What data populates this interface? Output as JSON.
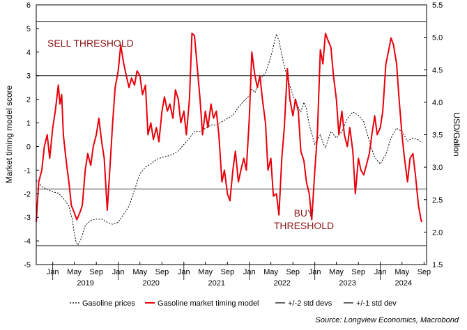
{
  "chart_data": {
    "type": "line",
    "ylabel_left": "Market timing model score",
    "ylabel_right": "USD/Gallon",
    "source": "Source: Longview Economics, Macrobond",
    "annotations": {
      "sell_threshold": "SELL THRESHOLD",
      "buy_threshold_line1": "BUY",
      "buy_threshold_line2": "THRESHOLD"
    },
    "ylim_left": [
      -5,
      6
    ],
    "ylim_right": [
      1.5,
      5.5
    ],
    "yticks_left": [
      -5,
      -4,
      -3,
      -2,
      -1,
      0,
      1,
      2,
      3,
      4,
      5,
      6
    ],
    "yticks_right": [
      1.5,
      2.0,
      2.5,
      3.0,
      3.5,
      4.0,
      4.5,
      5.0,
      5.5
    ],
    "yticklabels_left": [
      "-5",
      "-4",
      "-3",
      "-2",
      "-1",
      "0",
      "1",
      "2",
      "3",
      "4",
      "5",
      "6"
    ],
    "yticklabels_right": [
      "1.5",
      "2.0",
      "2.5",
      "3.0",
      "3.5",
      "4.0",
      "4.5",
      "5.0",
      "5.5"
    ],
    "xlim": [
      "2018-10-01",
      "2024-09-15"
    ],
    "xticks": [
      {
        "date": "2019-01-01",
        "label": "Jan"
      },
      {
        "date": "2019-05-01",
        "label": "May"
      },
      {
        "date": "2019-09-01",
        "label": "Sep"
      },
      {
        "date": "2020-01-01",
        "label": "Jan"
      },
      {
        "date": "2020-05-01",
        "label": "May"
      },
      {
        "date": "2020-09-01",
        "label": "Sep"
      },
      {
        "date": "2021-01-01",
        "label": "Jan"
      },
      {
        "date": "2021-05-01",
        "label": "May"
      },
      {
        "date": "2021-09-01",
        "label": "Sep"
      },
      {
        "date": "2022-01-01",
        "label": "Jan"
      },
      {
        "date": "2022-05-01",
        "label": "May"
      },
      {
        "date": "2022-09-01",
        "label": "Sep"
      },
      {
        "date": "2023-01-01",
        "label": "Jan"
      },
      {
        "date": "2023-05-01",
        "label": "May"
      },
      {
        "date": "2023-09-01",
        "label": "Sep"
      },
      {
        "date": "2024-01-01",
        "label": "Jan"
      },
      {
        "date": "2024-05-01",
        "label": "May"
      },
      {
        "date": "2024-09-01",
        "label": "Sep"
      }
    ],
    "year_labels": [
      {
        "date": "2019-01-01",
        "label": "2019"
      },
      {
        "date": "2020-01-01",
        "label": "2020"
      },
      {
        "date": "2021-01-01",
        "label": "2021"
      },
      {
        "date": "2022-01-01",
        "label": "2022"
      },
      {
        "date": "2023-01-01",
        "label": "2023"
      },
      {
        "date": "2024-01-01",
        "label": "2024"
      }
    ],
    "hlines": [
      {
        "y": 5.3,
        "series": "+/-2 std devs"
      },
      {
        "y": 3.0,
        "series": "+/-1 std dev"
      },
      {
        "y": -1.8,
        "series": "+/-1 std dev"
      },
      {
        "y": -4.2,
        "series": "+/-2 std devs"
      }
    ],
    "series": [
      {
        "name": "Gasoline prices",
        "axis": "right",
        "color": "#000000",
        "style": "dotted",
        "points": [
          [
            "2018-10-01",
            2.8
          ],
          [
            "2018-11-01",
            2.7
          ],
          [
            "2018-12-01",
            2.66
          ],
          [
            "2019-01-01",
            2.62
          ],
          [
            "2019-02-01",
            2.6
          ],
          [
            "2019-03-01",
            2.52
          ],
          [
            "2019-04-01",
            2.4
          ],
          [
            "2019-04-20",
            2.2
          ],
          [
            "2019-05-01",
            1.98
          ],
          [
            "2019-05-10",
            1.86
          ],
          [
            "2019-05-20",
            1.8
          ],
          [
            "2019-06-01",
            1.85
          ],
          [
            "2019-06-15",
            1.95
          ],
          [
            "2019-07-01",
            2.1
          ],
          [
            "2019-08-01",
            2.18
          ],
          [
            "2019-09-01",
            2.2
          ],
          [
            "2019-10-01",
            2.2
          ],
          [
            "2019-11-01",
            2.15
          ],
          [
            "2019-12-01",
            2.12
          ],
          [
            "2020-01-01",
            2.15
          ],
          [
            "2020-02-01",
            2.28
          ],
          [
            "2020-03-01",
            2.4
          ],
          [
            "2020-04-01",
            2.65
          ],
          [
            "2020-05-01",
            2.9
          ],
          [
            "2020-06-01",
            3.0
          ],
          [
            "2020-07-01",
            3.05
          ],
          [
            "2020-08-01",
            3.12
          ],
          [
            "2020-09-01",
            3.15
          ],
          [
            "2020-10-01",
            3.17
          ],
          [
            "2020-11-01",
            3.2
          ],
          [
            "2020-12-01",
            3.25
          ],
          [
            "2021-01-01",
            3.35
          ],
          [
            "2021-02-01",
            3.45
          ],
          [
            "2021-03-01",
            3.55
          ],
          [
            "2021-04-01",
            3.55
          ],
          [
            "2021-05-01",
            3.6
          ],
          [
            "2021-06-01",
            3.65
          ],
          [
            "2021-07-01",
            3.65
          ],
          [
            "2021-08-01",
            3.7
          ],
          [
            "2021-09-01",
            3.75
          ],
          [
            "2021-10-01",
            3.8
          ],
          [
            "2021-11-01",
            3.92
          ],
          [
            "2021-12-01",
            4.02
          ],
          [
            "2022-01-01",
            4.1
          ],
          [
            "2022-01-15",
            4.2
          ],
          [
            "2022-02-01",
            4.15
          ],
          [
            "2022-03-01",
            4.35
          ],
          [
            "2022-04-01",
            4.45
          ],
          [
            "2022-05-01",
            4.7
          ],
          [
            "2022-06-01",
            5.05
          ],
          [
            "2022-06-15",
            4.95
          ],
          [
            "2022-07-15",
            4.55
          ],
          [
            "2022-08-15",
            4.25
          ],
          [
            "2022-09-15",
            4.0
          ],
          [
            "2022-10-15",
            3.85
          ],
          [
            "2022-11-01",
            4.0
          ],
          [
            "2022-11-15",
            3.9
          ],
          [
            "2022-12-01",
            3.65
          ],
          [
            "2023-01-01",
            3.35
          ],
          [
            "2023-01-15",
            3.42
          ],
          [
            "2023-02-01",
            3.5
          ],
          [
            "2023-02-15",
            3.38
          ],
          [
            "2023-03-01",
            3.3
          ],
          [
            "2023-04-01",
            3.55
          ],
          [
            "2023-05-01",
            3.45
          ],
          [
            "2023-06-01",
            3.55
          ],
          [
            "2023-07-01",
            3.75
          ],
          [
            "2023-08-01",
            3.85
          ],
          [
            "2023-09-01",
            3.8
          ],
          [
            "2023-10-01",
            3.7
          ],
          [
            "2023-11-01",
            3.4
          ],
          [
            "2023-12-01",
            3.15
          ],
          [
            "2024-01-01",
            3.05
          ],
          [
            "2024-02-01",
            3.2
          ],
          [
            "2024-03-01",
            3.45
          ],
          [
            "2024-04-01",
            3.6
          ],
          [
            "2024-05-01",
            3.55
          ],
          [
            "2024-06-01",
            3.4
          ],
          [
            "2024-07-01",
            3.45
          ],
          [
            "2024-08-01",
            3.42
          ],
          [
            "2024-08-20",
            3.38
          ]
        ]
      },
      {
        "name": "Gasoline market timing model",
        "axis": "left",
        "color": "#e8000b",
        "style": "solid",
        "points": [
          [
            "2018-10-01",
            -3.2
          ],
          [
            "2018-10-15",
            -1.5
          ],
          [
            "2018-11-01",
            -1.0
          ],
          [
            "2018-11-15",
            0.0
          ],
          [
            "2018-12-01",
            0.5
          ],
          [
            "2018-12-15",
            -0.5
          ],
          [
            "2019-01-01",
            0.8
          ],
          [
            "2019-01-15",
            1.5
          ],
          [
            "2019-02-01",
            2.6
          ],
          [
            "2019-02-10",
            1.8
          ],
          [
            "2019-02-20",
            2.2
          ],
          [
            "2019-03-01",
            0.5
          ],
          [
            "2019-03-15",
            -0.5
          ],
          [
            "2019-04-01",
            -1.5
          ],
          [
            "2019-04-15",
            -2.5
          ],
          [
            "2019-05-01",
            -2.8
          ],
          [
            "2019-05-15",
            -3.1
          ],
          [
            "2019-06-01",
            -2.8
          ],
          [
            "2019-06-15",
            -2.5
          ],
          [
            "2019-07-01",
            -1.0
          ],
          [
            "2019-07-15",
            -0.3
          ],
          [
            "2019-08-01",
            -0.8
          ],
          [
            "2019-08-15",
            0.0
          ],
          [
            "2019-09-01",
            0.5
          ],
          [
            "2019-09-15",
            1.2
          ],
          [
            "2019-10-01",
            0.2
          ],
          [
            "2019-10-15",
            -0.5
          ],
          [
            "2019-11-01",
            -2.7
          ],
          [
            "2019-11-15",
            -1.0
          ],
          [
            "2019-12-01",
            1.0
          ],
          [
            "2019-12-15",
            2.5
          ],
          [
            "2020-01-01",
            3.2
          ],
          [
            "2020-01-15",
            4.3
          ],
          [
            "2020-02-01",
            3.5
          ],
          [
            "2020-02-15",
            3.0
          ],
          [
            "2020-03-01",
            2.5
          ],
          [
            "2020-03-15",
            2.9
          ],
          [
            "2020-04-01",
            2.6
          ],
          [
            "2020-04-15",
            3.2
          ],
          [
            "2020-05-01",
            3.0
          ],
          [
            "2020-05-15",
            2.2
          ],
          [
            "2020-06-01",
            2.6
          ],
          [
            "2020-06-15",
            0.5
          ],
          [
            "2020-07-01",
            1.0
          ],
          [
            "2020-07-15",
            0.3
          ],
          [
            "2020-08-01",
            0.8
          ],
          [
            "2020-08-15",
            0.2
          ],
          [
            "2020-09-01",
            1.5
          ],
          [
            "2020-09-15",
            2.1
          ],
          [
            "2020-10-01",
            1.5
          ],
          [
            "2020-10-15",
            1.8
          ],
          [
            "2020-11-01",
            1.2
          ],
          [
            "2020-11-15",
            2.4
          ],
          [
            "2020-12-01",
            2.0
          ],
          [
            "2020-12-15",
            1.0
          ],
          [
            "2021-01-01",
            1.5
          ],
          [
            "2021-01-15",
            0.5
          ],
          [
            "2021-02-01",
            2.0
          ],
          [
            "2021-02-15",
            4.8
          ],
          [
            "2021-03-01",
            4.7
          ],
          [
            "2021-03-15",
            3.5
          ],
          [
            "2021-04-01",
            2.0
          ],
          [
            "2021-04-15",
            0.5
          ],
          [
            "2021-05-01",
            1.5
          ],
          [
            "2021-05-15",
            0.8
          ],
          [
            "2021-06-01",
            1.8
          ],
          [
            "2021-06-15",
            1.2
          ],
          [
            "2021-07-01",
            1.5
          ],
          [
            "2021-07-15",
            0.5
          ],
          [
            "2021-08-01",
            -1.5
          ],
          [
            "2021-08-15",
            -1.0
          ],
          [
            "2021-09-01",
            -2.0
          ],
          [
            "2021-09-15",
            -2.3
          ],
          [
            "2021-10-01",
            -1.0
          ],
          [
            "2021-10-15",
            -0.2
          ],
          [
            "2021-11-01",
            -1.5
          ],
          [
            "2021-11-15",
            -1.0
          ],
          [
            "2021-12-01",
            -0.5
          ],
          [
            "2021-12-15",
            -1.0
          ],
          [
            "2022-01-01",
            1.2
          ],
          [
            "2022-01-15",
            4.0
          ],
          [
            "2022-02-01",
            3.0
          ],
          [
            "2022-02-15",
            2.5
          ],
          [
            "2022-03-01",
            3.0
          ],
          [
            "2022-03-15",
            2.0
          ],
          [
            "2022-04-01",
            1.0
          ],
          [
            "2022-04-15",
            -1.0
          ],
          [
            "2022-05-01",
            -0.5
          ],
          [
            "2022-05-15",
            -2.1
          ],
          [
            "2022-06-01",
            -2.0
          ],
          [
            "2022-06-15",
            -2.9
          ],
          [
            "2022-07-01",
            -0.5
          ],
          [
            "2022-07-15",
            0.8
          ],
          [
            "2022-08-01",
            3.3
          ],
          [
            "2022-08-15",
            2.0
          ],
          [
            "2022-09-01",
            1.3
          ],
          [
            "2022-09-15",
            2.0
          ],
          [
            "2022-10-01",
            1.5
          ],
          [
            "2022-10-15",
            -0.2
          ],
          [
            "2022-11-01",
            -0.6
          ],
          [
            "2022-11-15",
            -1.5
          ],
          [
            "2022-12-01",
            -2.0
          ],
          [
            "2022-12-15",
            -3.1
          ],
          [
            "2023-01-01",
            -1.0
          ],
          [
            "2023-01-15",
            0.5
          ],
          [
            "2023-02-01",
            4.1
          ],
          [
            "2023-02-15",
            3.5
          ],
          [
            "2023-03-01",
            4.8
          ],
          [
            "2023-03-15",
            4.5
          ],
          [
            "2023-04-01",
            4.2
          ],
          [
            "2023-04-15",
            3.0
          ],
          [
            "2023-05-01",
            2.0
          ],
          [
            "2023-05-15",
            0.5
          ],
          [
            "2023-06-01",
            1.5
          ],
          [
            "2023-06-15",
            0.5
          ],
          [
            "2023-07-01",
            0.0
          ],
          [
            "2023-07-15",
            0.8
          ],
          [
            "2023-08-01",
            -0.2
          ],
          [
            "2023-08-15",
            -2.0
          ],
          [
            "2023-09-01",
            -0.5
          ],
          [
            "2023-09-15",
            -1.0
          ],
          [
            "2023-10-01",
            -1.2
          ],
          [
            "2023-10-15",
            -0.8
          ],
          [
            "2023-11-01",
            -0.3
          ],
          [
            "2023-11-15",
            0.5
          ],
          [
            "2023-12-01",
            1.3
          ],
          [
            "2023-12-15",
            0.5
          ],
          [
            "2024-01-01",
            0.8
          ],
          [
            "2024-01-15",
            1.5
          ],
          [
            "2024-02-01",
            3.5
          ],
          [
            "2024-02-15",
            4.0
          ],
          [
            "2024-03-01",
            4.6
          ],
          [
            "2024-03-15",
            4.3
          ],
          [
            "2024-04-01",
            3.5
          ],
          [
            "2024-04-15",
            2.0
          ],
          [
            "2024-05-01",
            0.5
          ],
          [
            "2024-05-15",
            -0.5
          ],
          [
            "2024-06-01",
            -1.5
          ],
          [
            "2024-06-15",
            -0.5
          ],
          [
            "2024-07-01",
            -0.3
          ],
          [
            "2024-07-15",
            -1.2
          ],
          [
            "2024-08-01",
            -2.5
          ],
          [
            "2024-08-15",
            -3.1
          ],
          [
            "2024-08-20",
            -3.2
          ]
        ]
      }
    ],
    "legend": [
      {
        "label": "Gasoline prices",
        "style": "dotted",
        "color": "#000000"
      },
      {
        "label": "Gasoline market timing model",
        "style": "solid",
        "color": "#e8000b"
      },
      {
        "label": "+/-2 std devs",
        "style": "solid",
        "color": "#000000"
      },
      {
        "label": "+/-1 std dev",
        "style": "solid",
        "color": "#000000"
      }
    ],
    "legend_position": "bottom",
    "grid": false
  }
}
